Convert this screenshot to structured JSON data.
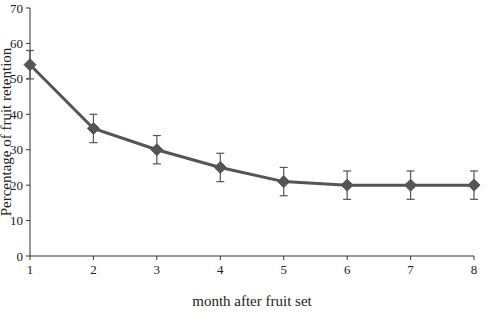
{
  "chart_data": {
    "type": "line",
    "x_label": "month after fruit set",
    "y_label": "Percentage of fruit retention",
    "x": [
      1,
      2,
      3,
      4,
      5,
      6,
      7,
      8
    ],
    "values": [
      54,
      36,
      30,
      25,
      21,
      20,
      20,
      20
    ],
    "errors": [
      4,
      4,
      4,
      4,
      4,
      4,
      4,
      4
    ],
    "color": "#555555",
    "marker": "diamond",
    "xlim": [
      1,
      8
    ],
    "xticks": [
      1,
      2,
      3,
      4,
      5,
      6,
      7,
      8
    ],
    "ylim": [
      0,
      70
    ],
    "yticks": [
      0,
      10,
      20,
      30,
      40,
      50,
      60,
      70
    ],
    "grid": false
  }
}
